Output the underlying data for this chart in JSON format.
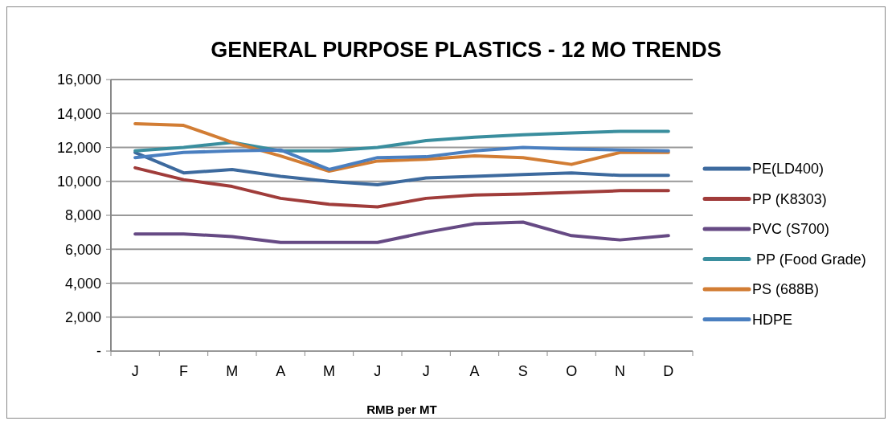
{
  "chart_data": {
    "type": "line",
    "title": "GENERAL PURPOSE PLASTICS - 12 MO TRENDS",
    "xlabel": "RMB per MT",
    "categories": [
      "J",
      "F",
      "M",
      "A",
      "M",
      "J",
      "J",
      "A",
      "S",
      "O",
      "N",
      "D"
    ],
    "series": [
      {
        "name": "PE(LD400)",
        "color": "#3d6a9e",
        "values": [
          11700,
          10500,
          10700,
          10300,
          10000,
          9800,
          10200,
          10300,
          10400,
          10500,
          10350,
          10350
        ]
      },
      {
        "name": "PP (K8303)",
        "color": "#a03c3a",
        "values": [
          10800,
          10100,
          9700,
          9000,
          8650,
          8500,
          9000,
          9200,
          9250,
          9350,
          9450,
          9450
        ]
      },
      {
        "name": "PVC (S700)",
        "color": "#664a84",
        "values": [
          6900,
          6900,
          6750,
          6400,
          6400,
          6400,
          7000,
          7500,
          7600,
          6800,
          6550,
          6800
        ]
      },
      {
        "name": " PP (Food Grade)",
        "color": "#3a8e9e",
        "values": [
          11800,
          12000,
          12300,
          11800,
          11800,
          12000,
          12400,
          12600,
          12750,
          12850,
          12950,
          12950
        ]
      },
      {
        "name": "PS (688B)",
        "color": "#d27d34",
        "values": [
          13400,
          13300,
          12300,
          11500,
          10600,
          11200,
          11300,
          11500,
          11400,
          11000,
          11700,
          11700
        ]
      },
      {
        "name": "HDPE",
        "color": "#4a7fc0",
        "values": [
          11400,
          11700,
          11800,
          11850,
          10700,
          11400,
          11450,
          11800,
          12000,
          11900,
          11850,
          11800
        ]
      }
    ],
    "ylim": [
      0,
      16000
    ],
    "yticks": [
      {
        "value": 0,
        "label": "-"
      },
      {
        "value": 2000,
        "label": "2,000"
      },
      {
        "value": 4000,
        "label": "4,000"
      },
      {
        "value": 6000,
        "label": "6,000"
      },
      {
        "value": 8000,
        "label": "8,000"
      },
      {
        "value": 10000,
        "label": "10,000"
      },
      {
        "value": 12000,
        "label": "12,000"
      },
      {
        "value": 14000,
        "label": "14,000"
      },
      {
        "value": 16000,
        "label": "16,000"
      }
    ],
    "grid": "y",
    "legend": "right",
    "marker": "none",
    "line_style": "solid"
  }
}
